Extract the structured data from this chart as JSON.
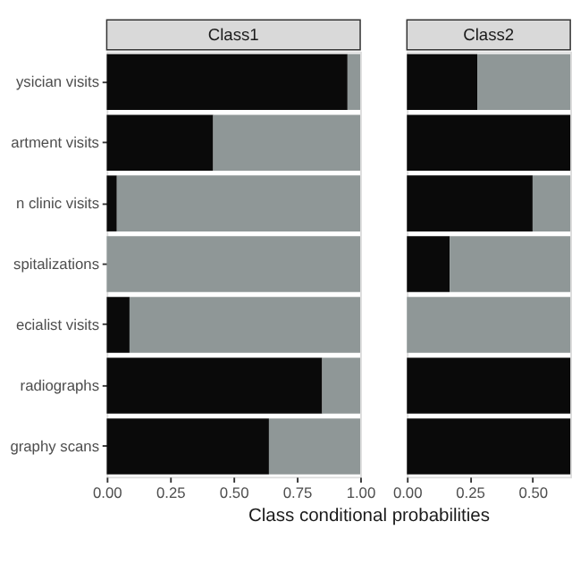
{
  "chart_data": [
    {
      "type": "bar",
      "title": "Class1",
      "orientation": "horizontal",
      "stacked": true,
      "categories": [
        "ysician visits",
        "artment visits",
        "n clinic visits",
        "spitalizations",
        "ecialist visits",
        "radiographs",
        "graphy scans"
      ],
      "series": [
        {
          "color": "#0a0a0a",
          "values": [
            0.95,
            0.42,
            0.04,
            0.0,
            0.09,
            0.85,
            0.64
          ]
        },
        {
          "color": "#8f9797",
          "values": [
            0.05,
            0.58,
            0.96,
            1.0,
            0.91,
            0.15,
            0.36
          ]
        }
      ],
      "xlim": [
        0,
        1
      ],
      "xticks": [
        {
          "value": 0,
          "label": "0.00"
        },
        {
          "value": 0.25,
          "label": "0.25"
        },
        {
          "value": 0.5,
          "label": "0.50"
        },
        {
          "value": 0.75,
          "label": "0.75"
        },
        {
          "value": 1,
          "label": "1.00"
        }
      ],
      "xlabel": "Class conditional probabilities",
      "grid": false,
      "legend": false
    },
    {
      "type": "bar",
      "title": "Class2",
      "orientation": "horizontal",
      "stacked": true,
      "tick_labels": "x",
      "categories": [
        null,
        null,
        null,
        null,
        null,
        null,
        null
      ],
      "series": [
        {
          "color": "#0a0a0a",
          "values": [
            0.28,
            0.65,
            0.5,
            0.17,
            0.0,
            0.65,
            0.65
          ]
        },
        {
          "color": "#8f9797",
          "values": [
            0.37,
            0.0,
            0.15,
            0.48,
            0.65,
            0.0,
            0.0
          ]
        }
      ],
      "xlim": [
        0,
        0.65
      ],
      "xticks": [
        {
          "value": 0,
          "label": "0.00"
        },
        {
          "value": 0.25,
          "label": "0.25"
        },
        {
          "value": 0.5,
          "label": "0.50"
        }
      ],
      "grid": false,
      "legend": false
    }
  ]
}
